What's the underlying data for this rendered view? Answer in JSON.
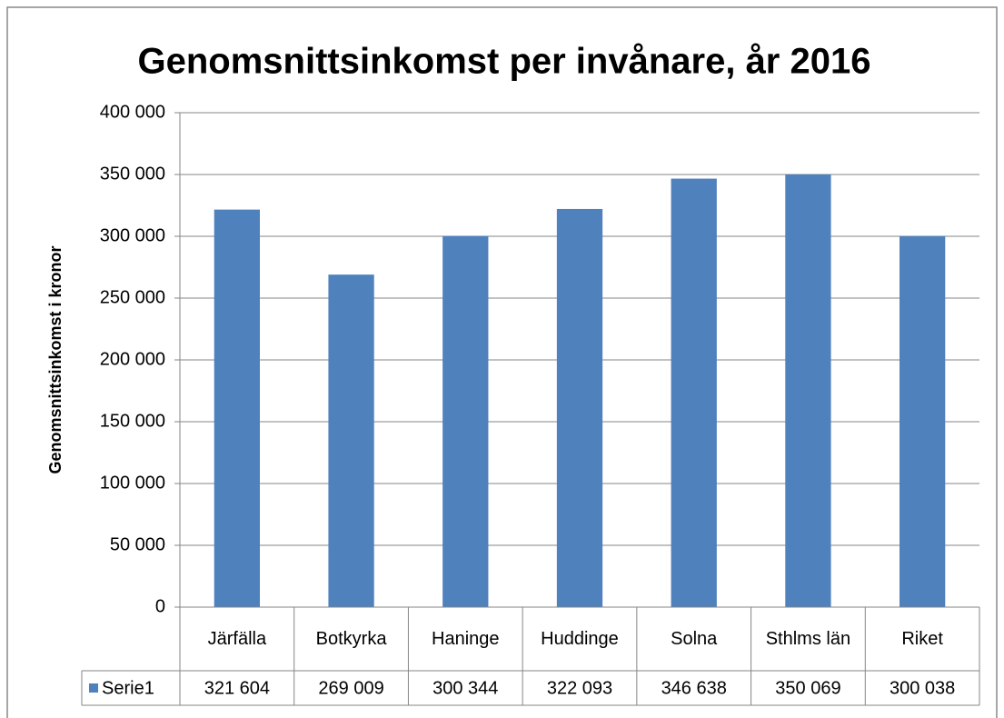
{
  "chart_data": {
    "type": "bar",
    "title": "Genomsnittsinkomst per invånare, år 2016",
    "y_label": "Genomsnittsinkomst i kronor",
    "categories": [
      "Järfälla",
      "Botkyrka",
      "Haninge",
      "Huddinge",
      "Solna",
      "Sthlms län",
      "Riket"
    ],
    "series": [
      {
        "name": "Serie1",
        "color": "#4f81bd",
        "values": [
          321604,
          269009,
          300344,
          322093,
          346638,
          350069,
          300038
        ],
        "value_labels": [
          "321 604",
          "269 009",
          "300 344",
          "322 093",
          "346 638",
          "350 069",
          "300 038"
        ]
      }
    ],
    "ylim": [
      0,
      400000
    ],
    "yticks": [
      0,
      {
        "value": 50000,
        "label": "50 000"
      },
      {
        "value": 100000,
        "label": "100 000"
      },
      {
        "value": 150000,
        "label": "150 000"
      },
      {
        "value": 200000,
        "label": "200 000"
      },
      {
        "value": 250000,
        "label": "250 000"
      },
      {
        "value": 300000,
        "label": "300 000"
      },
      {
        "value": 350000,
        "label": "350 000"
      },
      {
        "value": 400000,
        "label": "400 000"
      }
    ],
    "grid": true,
    "data_table": true
  }
}
